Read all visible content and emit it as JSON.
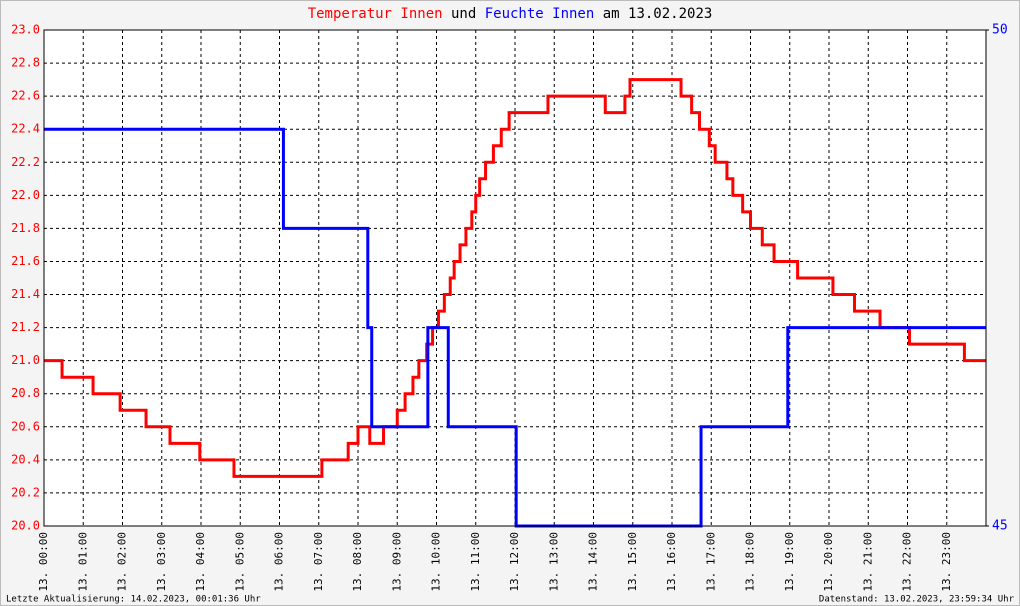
{
  "chart_data": {
    "type": "line",
    "title_joiner": "und",
    "title_suffix": "am 13.02.2023",
    "footer_left": "Letzte Aktualisierung: 14.02.2023, 00:01:36 Uhr",
    "footer_right": "Datenstand: 13.02.2023, 23:59:34 Uhr",
    "grid": true,
    "xlim": [
      0,
      24
    ],
    "xticks": [
      {
        "value": 0,
        "label": "13. 00:00"
      },
      {
        "value": 1,
        "label": "13. 01:00"
      },
      {
        "value": 2,
        "label": "13. 02:00"
      },
      {
        "value": 3,
        "label": "13. 03:00"
      },
      {
        "value": 4,
        "label": "13. 04:00"
      },
      {
        "value": 5,
        "label": "13. 05:00"
      },
      {
        "value": 6,
        "label": "13. 06:00"
      },
      {
        "value": 7,
        "label": "13. 07:00"
      },
      {
        "value": 8,
        "label": "13. 08:00"
      },
      {
        "value": 9,
        "label": "13. 09:00"
      },
      {
        "value": 10,
        "label": "13. 10:00"
      },
      {
        "value": 11,
        "label": "13. 11:00"
      },
      {
        "value": 12,
        "label": "13. 12:00"
      },
      {
        "value": 13,
        "label": "13. 13:00"
      },
      {
        "value": 14,
        "label": "13. 14:00"
      },
      {
        "value": 15,
        "label": "13. 15:00"
      },
      {
        "value": 16,
        "label": "13. 16:00"
      },
      {
        "value": 17,
        "label": "13. 17:00"
      },
      {
        "value": 18,
        "label": "13. 18:00"
      },
      {
        "value": 19,
        "label": "13. 19:00"
      },
      {
        "value": 20,
        "label": "13. 20:00"
      },
      {
        "value": 21,
        "label": "13. 21:00"
      },
      {
        "value": 22,
        "label": "13. 22:00"
      },
      {
        "value": 23,
        "label": "13. 23:00"
      }
    ],
    "ylim": [
      20.0,
      23.0
    ],
    "yticks": [
      {
        "value": 20.0,
        "label": "20.0"
      },
      20.2,
      20.4,
      20.6,
      20.8,
      {
        "value": 21.0,
        "label": "21.0"
      },
      21.2,
      21.4,
      21.6,
      21.8,
      {
        "value": 22.0,
        "label": "22.0"
      },
      22.2,
      22.4,
      22.6,
      22.8,
      {
        "value": 23.0,
        "label": "23.0"
      }
    ],
    "y2lim": [
      45,
      50
    ],
    "y2ticks": [
      45,
      50
    ],
    "series": [
      {
        "name": "Temperatur Innen",
        "color": "#ff0000",
        "axis": "y",
        "x": [
          0,
          0.46,
          0.46,
          1.25,
          1.25,
          1.94,
          1.94,
          2.6,
          2.6,
          3.21,
          3.21,
          3.97,
          3.97,
          4.84,
          4.84,
          7.08,
          7.08,
          7.75,
          7.75,
          8.0,
          8.0,
          8.3,
          8.3,
          8.65,
          8.65,
          9.0,
          9.0,
          9.2,
          9.2,
          9.4,
          9.4,
          9.55,
          9.55,
          9.75,
          9.75,
          9.9,
          9.9,
          10.05,
          10.05,
          10.2,
          10.2,
          10.35,
          10.35,
          10.45,
          10.45,
          10.6,
          10.6,
          10.75,
          10.75,
          10.9,
          10.9,
          11.0,
          11.0,
          11.1,
          11.1,
          11.25,
          11.25,
          11.45,
          11.45,
          11.65,
          11.65,
          11.85,
          11.85,
          12.84,
          12.84,
          14.3,
          14.3,
          14.8,
          14.8,
          14.93,
          14.93,
          16.23,
          16.23,
          16.5,
          16.5,
          16.7,
          16.7,
          16.95,
          16.95,
          17.1,
          17.1,
          17.4,
          17.4,
          17.55,
          17.55,
          17.8,
          17.8,
          18.0,
          18.0,
          18.3,
          18.3,
          18.6,
          18.6,
          19.2,
          19.2,
          20.1,
          20.1,
          20.65,
          20.65,
          21.3,
          21.3,
          22.05,
          22.05,
          23.45,
          23.45,
          24
        ],
        "values": [
          21.0,
          21.0,
          20.9,
          20.9,
          20.8,
          20.8,
          20.7,
          20.7,
          20.6,
          20.6,
          20.5,
          20.5,
          20.4,
          20.4,
          20.3,
          20.3,
          20.4,
          20.4,
          20.5,
          20.5,
          20.6,
          20.6,
          20.5,
          20.5,
          20.6,
          20.6,
          20.7,
          20.7,
          20.8,
          20.8,
          20.9,
          20.9,
          21.0,
          21.0,
          21.1,
          21.1,
          21.2,
          21.2,
          21.3,
          21.3,
          21.4,
          21.4,
          21.5,
          21.5,
          21.6,
          21.6,
          21.7,
          21.7,
          21.8,
          21.8,
          21.9,
          21.9,
          22.0,
          22.0,
          22.1,
          22.1,
          22.2,
          22.2,
          22.3,
          22.3,
          22.4,
          22.4,
          22.5,
          22.5,
          22.6,
          22.6,
          22.5,
          22.5,
          22.6,
          22.6,
          22.7,
          22.7,
          22.6,
          22.6,
          22.5,
          22.5,
          22.4,
          22.4,
          22.3,
          22.3,
          22.2,
          22.2,
          22.1,
          22.1,
          22.0,
          22.0,
          21.9,
          21.9,
          21.8,
          21.8,
          21.7,
          21.7,
          21.6,
          21.6,
          21.5,
          21.5,
          21.4,
          21.4,
          21.3,
          21.3,
          21.2,
          21.2,
          21.1,
          21.1,
          21.0,
          21.0
        ]
      },
      {
        "name": "Feuchte Innen",
        "color": "#0000ff",
        "axis": "y2",
        "x": [
          0,
          6.1,
          6.1,
          8.25,
          8.25,
          8.35,
          8.35,
          9.78,
          9.78,
          10.3,
          10.3,
          12.03,
          12.03,
          16.74,
          16.74,
          18.95,
          18.95,
          24
        ],
        "values": [
          49,
          49,
          48,
          48,
          47,
          47,
          46,
          46,
          47,
          47,
          46,
          46,
          45,
          45,
          46,
          46,
          47,
          47
        ]
      }
    ]
  }
}
